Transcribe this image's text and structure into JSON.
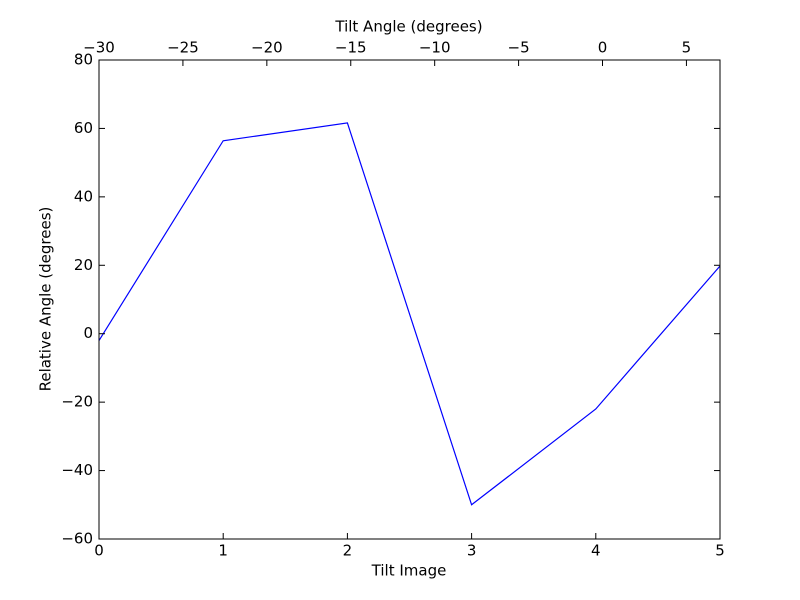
{
  "chart_data": {
    "type": "line",
    "xlabel": "Tilt Image",
    "ylabel": "Relative Angle (degrees)",
    "x2label": "Tilt Angle (degrees)",
    "x": [
      0,
      1,
      2,
      3,
      4,
      5
    ],
    "values": [
      -2,
      56.4,
      61.6,
      -50,
      -22,
      19.8
    ],
    "color": "#0000ff",
    "xlim": [
      0,
      5
    ],
    "xticks": [
      0,
      1,
      2,
      3,
      4,
      5
    ],
    "ylim": [
      -60,
      80
    ],
    "yticks": [
      {
        "value": -60,
        "label": "−60"
      },
      {
        "value": -40,
        "label": "−40"
      },
      {
        "value": -20,
        "label": "−20"
      },
      0,
      20,
      40,
      60,
      80
    ],
    "x2lim": [
      -30,
      7
    ],
    "x2ticks": [
      {
        "value": -30,
        "label": "−30"
      },
      {
        "value": -25,
        "label": "−25"
      },
      {
        "value": -20,
        "label": "−20"
      },
      {
        "value": -15,
        "label": "−15"
      },
      {
        "value": -10,
        "label": "−10"
      },
      {
        "value": -5,
        "label": "−5"
      },
      0,
      5
    ]
  }
}
